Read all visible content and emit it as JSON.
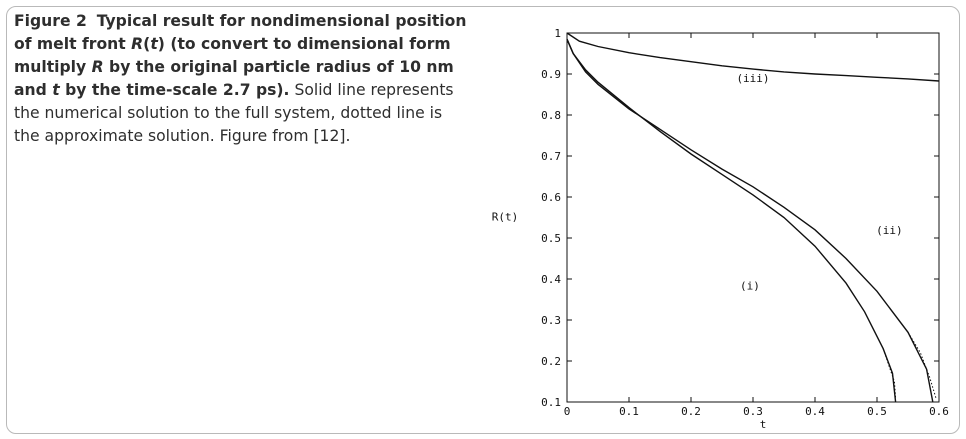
{
  "caption": {
    "label": "Figure 2",
    "bold_1": "Typical result for nondimensional position of melt front ",
    "bold_var_1": "R",
    "bold_2": "(",
    "bold_var_2": "t",
    "bold_3": ") (to convert to dimensional form multiply ",
    "bold_var_3": "R",
    "bold_4": " by the original particle radius of 10 nm and ",
    "bold_var_4": "t",
    "bold_5": " by the time-scale 2.7 ps).",
    "rest": " Solid line represents the numerical solution to the full system, dotted line is the approximate solution. Figure from [12]."
  },
  "chart_data": {
    "type": "line",
    "title": "",
    "xlabel": "t",
    "ylabel": "R(t)",
    "xlim": [
      0,
      0.6
    ],
    "ylim": [
      0.1,
      1
    ],
    "xticks": [
      0,
      0.1,
      0.2,
      0.3,
      0.4,
      0.5,
      0.6
    ],
    "yticks": [
      0.1,
      0.2,
      0.3,
      0.4,
      0.5,
      0.6,
      0.7,
      0.8,
      0.9,
      1
    ],
    "grid": false,
    "annotations": [
      {
        "text": "(iii)",
        "x": 0.3,
        "y": 0.88
      },
      {
        "text": "(ii)",
        "x": 0.52,
        "y": 0.51
      },
      {
        "text": "(i)",
        "x": 0.295,
        "y": 0.375
      }
    ],
    "series": [
      {
        "style": "solid",
        "points": [
          [
            0,
            1.0
          ],
          [
            0.02,
            0.98
          ],
          [
            0.05,
            0.967
          ],
          [
            0.1,
            0.952
          ],
          [
            0.15,
            0.94
          ],
          [
            0.2,
            0.93
          ],
          [
            0.25,
            0.92
          ],
          [
            0.3,
            0.912
          ],
          [
            0.35,
            0.905
          ],
          [
            0.4,
            0.9
          ],
          [
            0.45,
            0.896
          ],
          [
            0.5,
            0.892
          ],
          [
            0.55,
            0.888
          ],
          [
            0.6,
            0.883
          ]
        ]
      },
      {
        "style": "solid",
        "points": [
          [
            0,
            0.985
          ],
          [
            0.01,
            0.95
          ],
          [
            0.03,
            0.91
          ],
          [
            0.05,
            0.88
          ],
          [
            0.1,
            0.818
          ],
          [
            0.15,
            0.76
          ],
          [
            0.2,
            0.705
          ],
          [
            0.25,
            0.655
          ],
          [
            0.3,
            0.605
          ],
          [
            0.35,
            0.55
          ],
          [
            0.4,
            0.48
          ],
          [
            0.45,
            0.39
          ],
          [
            0.48,
            0.32
          ],
          [
            0.51,
            0.23
          ],
          [
            0.525,
            0.17
          ],
          [
            0.53,
            0.1
          ]
        ]
      },
      {
        "style": "dotted",
        "points": [
          [
            0.51,
            0.23
          ],
          [
            0.52,
            0.185
          ],
          [
            0.528,
            0.15
          ],
          [
            0.53,
            0.11
          ]
        ]
      },
      {
        "style": "solid",
        "points": [
          [
            0,
            0.985
          ],
          [
            0.01,
            0.95
          ],
          [
            0.03,
            0.905
          ],
          [
            0.05,
            0.875
          ],
          [
            0.1,
            0.815
          ],
          [
            0.15,
            0.765
          ],
          [
            0.2,
            0.715
          ],
          [
            0.25,
            0.668
          ],
          [
            0.3,
            0.625
          ],
          [
            0.35,
            0.575
          ],
          [
            0.4,
            0.52
          ],
          [
            0.45,
            0.45
          ],
          [
            0.5,
            0.37
          ],
          [
            0.55,
            0.27
          ],
          [
            0.58,
            0.18
          ],
          [
            0.59,
            0.1
          ]
        ]
      },
      {
        "style": "dotted",
        "points": [
          [
            0.55,
            0.27
          ],
          [
            0.57,
            0.22
          ],
          [
            0.585,
            0.16
          ],
          [
            0.595,
            0.11
          ]
        ]
      }
    ]
  }
}
